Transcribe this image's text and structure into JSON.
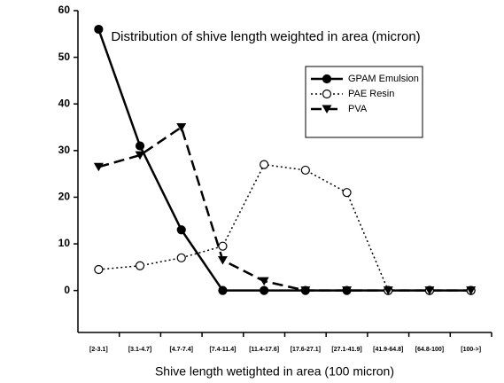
{
  "chart_data": {
    "type": "line",
    "title": "Distribution of shive length weighted in area (micron)",
    "x_label": "Shive length wetighted in area (100 micron)",
    "categories": [
      "[2-3.1]",
      "[3.1-4.7]",
      "[4.7-7.4]",
      "[7.4-11.4]",
      "[11.4-17.6]",
      "[17.6-27.1]",
      "[27.1-41.9]",
      "[41.9-64.8]",
      "[64.8-100]",
      "[100->]"
    ],
    "series": [
      {
        "name": "GPAM Emulsion",
        "color": "#000000",
        "line_style": "solid",
        "marker": "filled-circle",
        "values": [
          56,
          31,
          13,
          0,
          0,
          0,
          0,
          0,
          0,
          0
        ]
      },
      {
        "name": "PAE Resin",
        "color": "#000000",
        "line_style": "dotted",
        "marker": "open-circle",
        "values": [
          4.5,
          5.3,
          7,
          9.5,
          27,
          25.8,
          21,
          0,
          0,
          0
        ]
      },
      {
        "name": "PVA",
        "color": "#000000",
        "line_style": "dashed",
        "marker": "triangle-down",
        "values": [
          26.5,
          29,
          35,
          6.5,
          2,
          0,
          0,
          0,
          0,
          0
        ]
      }
    ],
    "ylim": [
      -9,
      60
    ],
    "yticks": [
      0,
      10,
      20,
      30,
      40,
      50,
      60
    ],
    "grid": false,
    "legend": "upper right"
  }
}
